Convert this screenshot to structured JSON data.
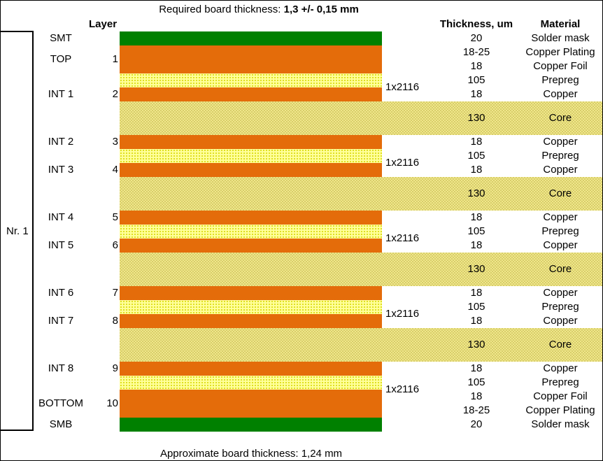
{
  "header": {
    "required_label": "Required board thickness: ",
    "required_value": "1,3 +/- 0,15 mm",
    "layer_col": "Layer",
    "thickness_col": "Thickness, um",
    "material_col": "Material"
  },
  "stack_label": "Nr. 1",
  "rows": [
    {
      "name": "SMT",
      "num": "",
      "thickness": "20",
      "material": "Solder mask"
    },
    {
      "name": "TOP",
      "num": "1",
      "thickness": "18-25",
      "material": "Copper Plating"
    },
    {
      "name": "",
      "num": "",
      "thickness": "18",
      "material": "Copper Foil"
    },
    {
      "name": "",
      "num": "",
      "thickness": "105",
      "material": "Prepreg",
      "glass": "1x2116"
    },
    {
      "name": "INT 1",
      "num": "2",
      "thickness": "18",
      "material": "Copper"
    },
    {
      "name": "",
      "num": "",
      "thickness": "130",
      "material": "Core"
    },
    {
      "name": "INT 2",
      "num": "3",
      "thickness": "18",
      "material": "Copper"
    },
    {
      "name": "",
      "num": "",
      "thickness": "105",
      "material": "Prepreg",
      "glass": "1x2116"
    },
    {
      "name": "INT 3",
      "num": "4",
      "thickness": "18",
      "material": "Copper"
    },
    {
      "name": "",
      "num": "",
      "thickness": "130",
      "material": "Core"
    },
    {
      "name": "INT 4",
      "num": "5",
      "thickness": "18",
      "material": "Copper"
    },
    {
      "name": "",
      "num": "",
      "thickness": "105",
      "material": "Prepreg",
      "glass": "1x2116"
    },
    {
      "name": "INT 5",
      "num": "6",
      "thickness": "18",
      "material": "Copper"
    },
    {
      "name": "",
      "num": "",
      "thickness": "130",
      "material": "Core"
    },
    {
      "name": "INT 6",
      "num": "7",
      "thickness": "18",
      "material": "Copper"
    },
    {
      "name": "",
      "num": "",
      "thickness": "105",
      "material": "Prepreg",
      "glass": "1x2116"
    },
    {
      "name": "INT 7",
      "num": "8",
      "thickness": "18",
      "material": "Copper"
    },
    {
      "name": "",
      "num": "",
      "thickness": "130",
      "material": "Core"
    },
    {
      "name": "INT 8",
      "num": "9",
      "thickness": "18",
      "material": "Copper"
    },
    {
      "name": "",
      "num": "",
      "thickness": "105",
      "material": "Prepreg",
      "glass": "1x2116"
    },
    {
      "name": "BOTTOM",
      "num": "10",
      "thickness": "18",
      "material": "Copper Foil"
    },
    {
      "name": "",
      "num": "",
      "thickness": "18-25",
      "material": "Copper Plating"
    },
    {
      "name": "SMB",
      "num": "",
      "thickness": "20",
      "material": "Solder mask"
    }
  ],
  "footer": "Approximate board thickness: 1,24 mm",
  "colors": {
    "solder_mask": "#008000",
    "copper": "#E46C0A",
    "prepreg": "#FFFF99",
    "core": "#F0E68C"
  }
}
